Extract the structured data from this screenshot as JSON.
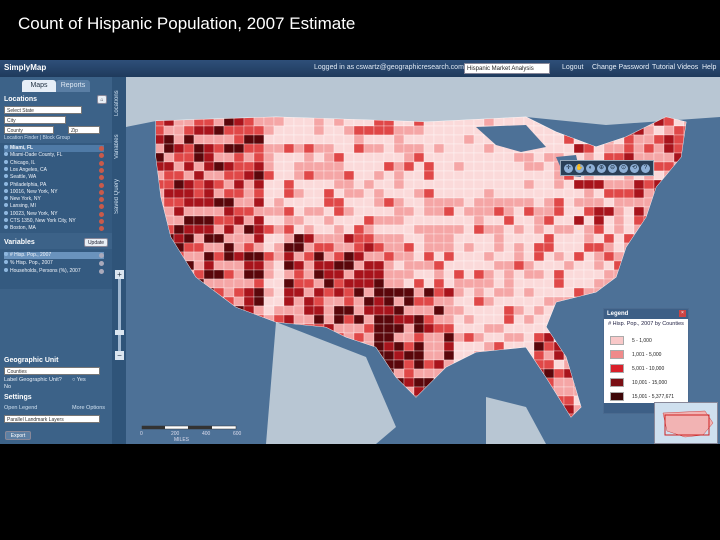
{
  "slide": {
    "title": "Count of Hispanic Population, 2007 Estimate"
  },
  "topbar": {
    "logo": "SimplyMap",
    "logged_in": "Logged in as cswartz@geographicresearch.com",
    "project": "Hispanic Market Analysis",
    "links": [
      "Logout",
      "Change Password",
      "Tutorial Videos",
      "Help"
    ]
  },
  "sidebar": {
    "tabs": [
      "Maps",
      "Reports"
    ],
    "locations": {
      "heading": "Locations",
      "state_placeholder": "Select State",
      "city_placeholder": "City",
      "county_placeholder": "County",
      "zip_placeholder": "Zip",
      "links": "Location Finder | Block Group",
      "items": [
        "Miami, FL",
        "Miami-Dade County, FL",
        "Chicago, IL",
        "Los Angeles, CA",
        "Seattle, WA",
        "Philadelphia, PA",
        "10016, New York, NY",
        "New York, NY",
        "Lansing, MI",
        "10023, New York, NY",
        "CTS 1350, New York City, NY",
        "Boston, MA"
      ]
    },
    "variables": {
      "heading": "Variables",
      "button": "Update",
      "items": [
        "# Hisp. Pop., 2007",
        "% Hisp. Pop., 2007",
        "Households, Persons (%), 2007"
      ]
    },
    "geo_unit": {
      "heading": "Geographic Unit",
      "value": "Counties",
      "label_q": "Label Geographic Unit?",
      "yes": "Yes",
      "no": "No"
    },
    "settings": {
      "heading": "Settings",
      "open_legend": "Open Legend",
      "more_options": "More Options",
      "style": "Parallel Landmark Layers"
    },
    "export": "Export"
  },
  "vtabs": [
    "Locations",
    "Variables",
    "Saved Query"
  ],
  "toolbar": {
    "tools": [
      "✛",
      "✋",
      "◐",
      "⊕",
      "⊖",
      "⊙",
      "⟲",
      "?"
    ]
  },
  "scale": {
    "labels": [
      "0",
      "200",
      "400",
      "600"
    ],
    "unit": "MILES"
  },
  "legend": {
    "header": "Legend",
    "title": "# Hisp. Pop., 2007 by Counties",
    "rows": [
      {
        "label": "5 - 1,000",
        "color": "#f9c9c9"
      },
      {
        "label": "1,001 - 5,000",
        "color": "#f08a8a"
      },
      {
        "label": "5,001 - 10,000",
        "color": "#d8202a"
      },
      {
        "label": "10,001 - 15,000",
        "color": "#7a0f14"
      },
      {
        "label": "15,001 - 5,377,671",
        "color": "#3d0608"
      }
    ]
  },
  "colors": {
    "choropleth": [
      "#fbdada",
      "#f5a6a6",
      "#e04848",
      "#a8141c",
      "#5a070b"
    ],
    "water": "#4d7197",
    "land_outside": "#b8c6d3"
  }
}
